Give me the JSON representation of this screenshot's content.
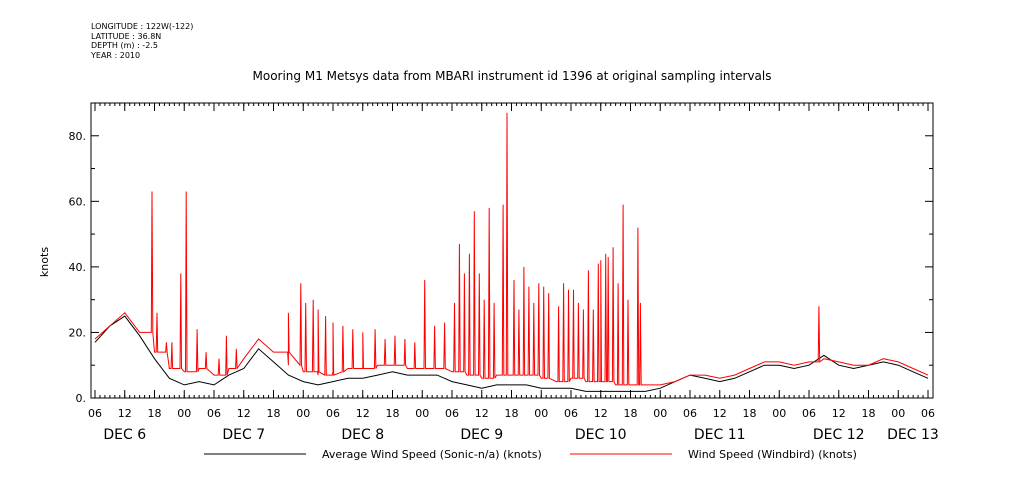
{
  "meta": {
    "longitude": "LONGITUDE : 122W(-122)",
    "latitude": "LATITUDE : 36.8N",
    "depth": "DEPTH (m) : -2.5",
    "year": "YEAR : 2010"
  },
  "chart_data": {
    "type": "line",
    "title": "Mooring M1 Metsys data from MBARI instrument id 1396 at original sampling intervals",
    "xlabel": "",
    "ylabel": "knots",
    "ylim": [
      0,
      90
    ],
    "yticks": [
      "0.",
      "20.",
      "40.",
      "60.",
      "80."
    ],
    "xlim_hours": [
      0,
      168
    ],
    "x_ticks": [
      "06",
      "12",
      "18",
      "00",
      "06",
      "12",
      "18",
      "00",
      "06",
      "12",
      "18",
      "00",
      "06",
      "12",
      "18",
      "00",
      "06",
      "12",
      "18",
      "00",
      "06",
      "12",
      "18",
      "00",
      "06",
      "12",
      "18",
      "00",
      "06"
    ],
    "date_labels": [
      "DEC  6",
      "DEC  7",
      "DEC  8",
      "DEC  9",
      "DEC 10",
      "DEC 11",
      "DEC 12",
      "DEC 13"
    ],
    "grid": false,
    "legend_position": "bottom",
    "series": [
      {
        "name": "Average Wind Speed (Sonic-n/a) (knots)",
        "color": "#000000",
        "x": [
          0,
          3,
          6,
          9,
          12,
          15,
          18,
          21,
          24,
          27,
          30,
          33,
          36,
          39,
          42,
          45,
          48,
          51,
          54,
          57,
          60,
          63,
          66,
          69,
          72,
          75,
          78,
          81,
          84,
          87,
          90,
          93,
          96,
          99,
          102,
          105,
          108,
          111,
          114,
          117,
          120,
          123,
          126,
          129,
          132,
          135,
          138,
          141,
          144,
          147,
          150,
          153,
          156,
          159,
          162,
          165,
          168
        ],
        "values": [
          17,
          22,
          25,
          19,
          12,
          6,
          4,
          5,
          4,
          7,
          9,
          15,
          11,
          7,
          5,
          4,
          5,
          6,
          6,
          7,
          8,
          7,
          7,
          7,
          5,
          4,
          3,
          4,
          4,
          4,
          3,
          3,
          3,
          2,
          2,
          2,
          2,
          2,
          3,
          5,
          7,
          6,
          5,
          6,
          8,
          10,
          10,
          9,
          10,
          13,
          10,
          9,
          10,
          11,
          10,
          8,
          6
        ]
      },
      {
        "name": "Wind Speed (Windbird) (knots)",
        "color": "#ff0000",
        "x": [
          0,
          3,
          6,
          9,
          12,
          15,
          18,
          21,
          24,
          27,
          30,
          33,
          36,
          39,
          42,
          45,
          48,
          51,
          54,
          57,
          60,
          63,
          66,
          69,
          72,
          75,
          78,
          81,
          84,
          87,
          90,
          93,
          96,
          99,
          102,
          105,
          108,
          111,
          114,
          117,
          120,
          123,
          126,
          129,
          132,
          135,
          138,
          141,
          144,
          147,
          150,
          153,
          156,
          159,
          162,
          165,
          168
        ],
        "values": [
          18,
          22,
          26,
          20,
          14,
          9,
          8,
          9,
          7,
          9,
          12,
          18,
          14,
          10,
          8,
          7,
          8,
          9,
          9,
          10,
          10,
          9,
          9,
          9,
          8,
          7,
          6,
          7,
          7,
          7,
          6,
          5,
          6,
          5,
          5,
          4,
          4,
          4,
          4,
          5,
          7,
          7,
          6,
          7,
          9,
          11,
          11,
          10,
          11,
          12,
          11,
          10,
          10,
          12,
          11,
          9,
          7
        ],
        "spikes": [
          [
            11.5,
            63
          ],
          [
            12.5,
            26
          ],
          [
            13.3,
            14
          ],
          [
            14.4,
            17
          ],
          [
            15.5,
            17
          ],
          [
            17.3,
            38
          ],
          [
            18.4,
            63
          ],
          [
            20.6,
            21
          ],
          [
            22.4,
            14
          ],
          [
            25,
            12
          ],
          [
            26.5,
            19
          ],
          [
            28.5,
            15
          ],
          [
            39,
            26
          ],
          [
            41.5,
            35
          ],
          [
            42.5,
            29
          ],
          [
            44,
            30
          ],
          [
            45,
            27
          ],
          [
            46.5,
            25
          ],
          [
            48,
            23
          ],
          [
            50,
            22
          ],
          [
            52,
            21
          ],
          [
            54,
            20
          ],
          [
            56.5,
            21
          ],
          [
            58.5,
            18
          ],
          [
            60.5,
            19
          ],
          [
            62.5,
            18
          ],
          [
            64.5,
            17
          ],
          [
            66.5,
            36
          ],
          [
            68.5,
            22
          ],
          [
            70.5,
            23
          ],
          [
            72.5,
            29
          ],
          [
            73.5,
            47
          ],
          [
            74.5,
            38
          ],
          [
            75.5,
            44
          ],
          [
            76.5,
            57
          ],
          [
            77.5,
            38
          ],
          [
            78.5,
            30
          ],
          [
            79.5,
            58
          ],
          [
            80.5,
            29
          ],
          [
            82.3,
            59
          ],
          [
            83.1,
            87
          ],
          [
            84.5,
            36
          ],
          [
            85.5,
            27
          ],
          [
            86.5,
            40
          ],
          [
            87.5,
            34
          ],
          [
            88.5,
            29
          ],
          [
            89.5,
            35
          ],
          [
            90.5,
            34
          ],
          [
            91.5,
            32
          ],
          [
            93.5,
            28
          ],
          [
            94.5,
            35
          ],
          [
            95.5,
            33
          ],
          [
            96.5,
            33
          ],
          [
            97.5,
            29
          ],
          [
            98.5,
            27
          ],
          [
            99.5,
            39
          ],
          [
            100.5,
            27
          ],
          [
            101.5,
            41
          ],
          [
            102,
            42
          ],
          [
            103,
            44
          ],
          [
            103.5,
            43
          ],
          [
            104.5,
            46
          ],
          [
            105.5,
            35
          ],
          [
            106.5,
            59
          ],
          [
            107.5,
            30
          ],
          [
            109.5,
            52
          ],
          [
            110,
            29
          ],
          [
            146,
            28
          ]
        ]
      }
    ]
  }
}
